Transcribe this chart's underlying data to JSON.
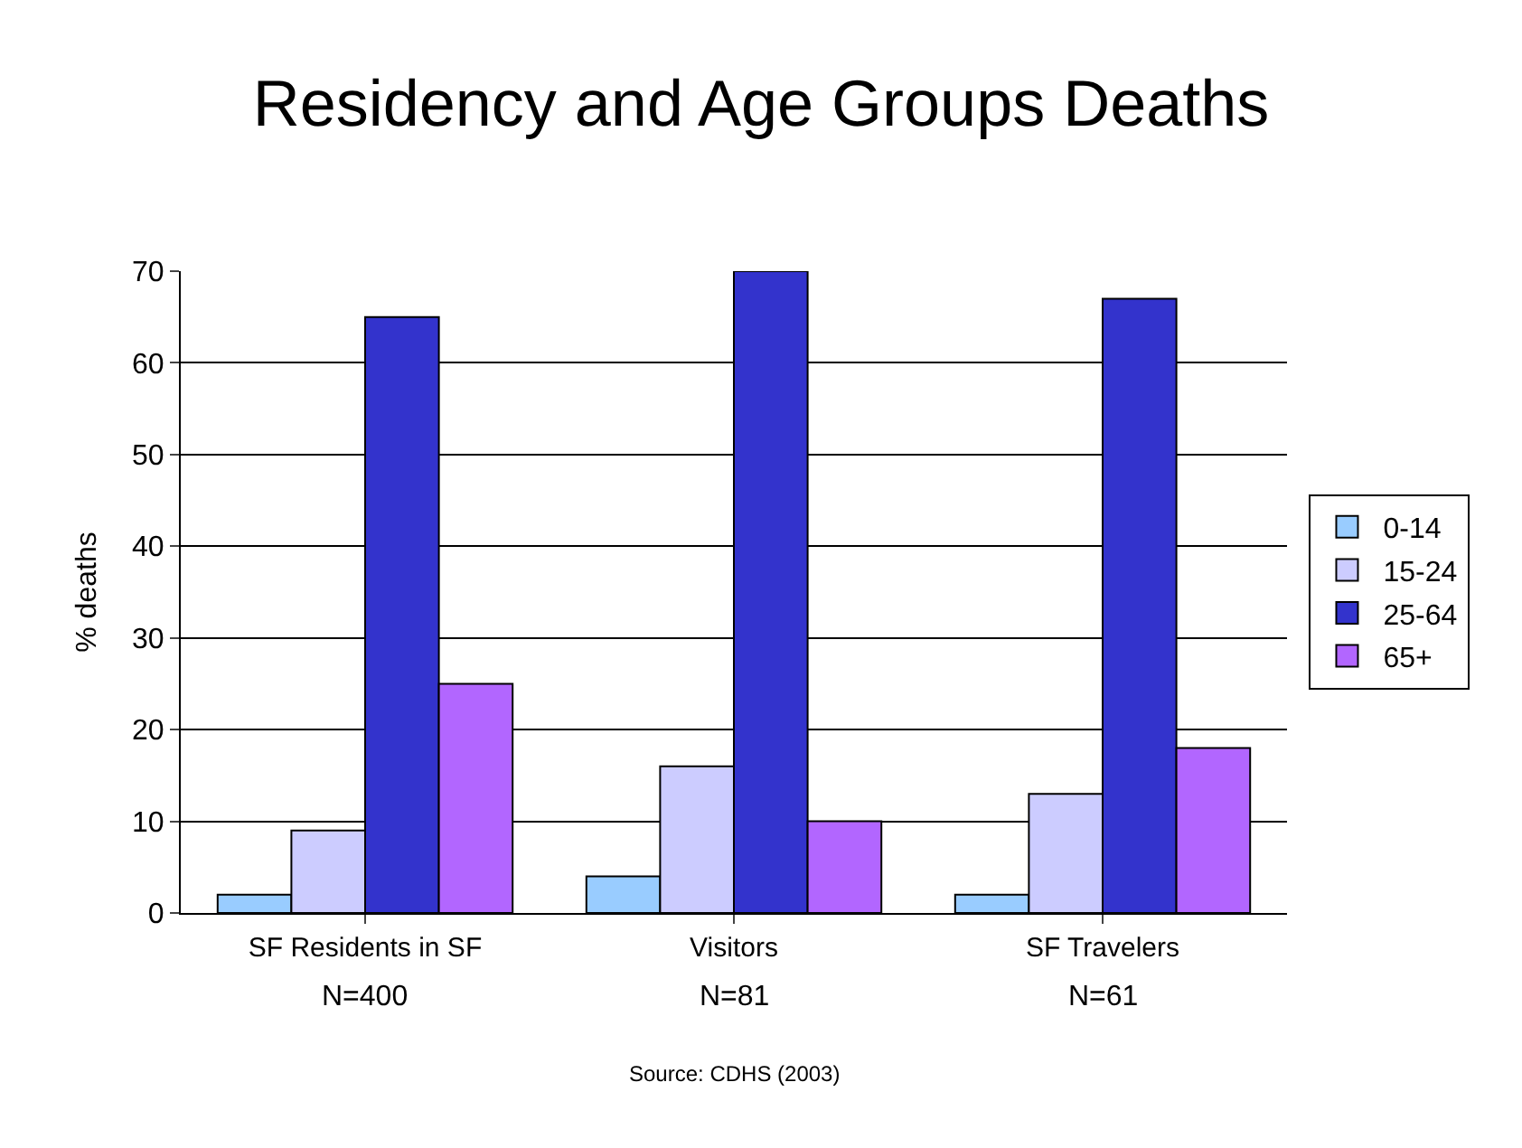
{
  "chart_data": {
    "type": "bar",
    "title": "Residency and Age Groups Deaths",
    "ylabel": "% deaths",
    "categories": [
      "SF Residents in SF",
      "Visitors",
      "SF Travelers"
    ],
    "series": [
      {
        "name": "0-14",
        "color": "#99ccff",
        "values": [
          2,
          4,
          2
        ]
      },
      {
        "name": "15-24",
        "color": "#ccccff",
        "values": [
          9,
          16,
          13
        ]
      },
      {
        "name": "25-64",
        "color": "#3333cc",
        "values": [
          65,
          70,
          67
        ]
      },
      {
        "name": "65+",
        "color": "#b266ff",
        "values": [
          25,
          10,
          18
        ]
      }
    ],
    "ylim": [
      0,
      70
    ],
    "yticks": [
      0,
      10,
      20,
      30,
      40,
      50,
      60,
      70
    ],
    "grid": "y",
    "legend": "right",
    "annotations": [
      "N=400",
      "N=81",
      "N=61",
      "Source: CDHS (2003)"
    ]
  }
}
